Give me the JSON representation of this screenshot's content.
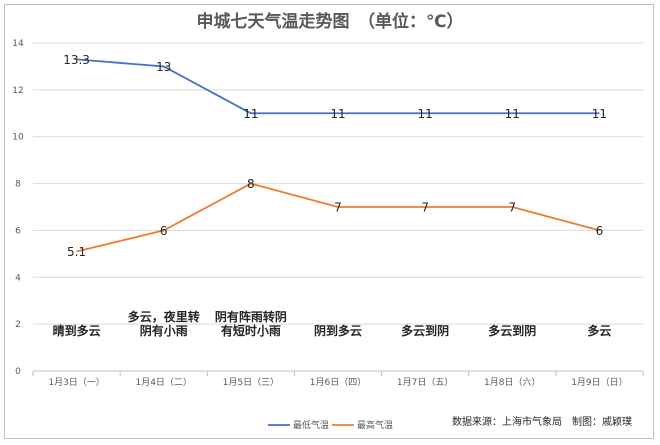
{
  "chart_data": {
    "type": "line",
    "title": "申城七天气温走势图　（单位：℃）",
    "categories": [
      "1月3日（一）",
      "1月4日（二）",
      "1月5日（三）",
      "1月6日（四）",
      "1月7日（五）",
      "1月8日（六）",
      "1月9日（日）"
    ],
    "ylim": [
      0,
      14
    ],
    "yticks": [
      0,
      2,
      4,
      6,
      8,
      10,
      12,
      14
    ],
    "grid": true,
    "legend_position": "bottom",
    "series": [
      {
        "name": "最低气温",
        "color": "#4472c4",
        "values": [
          13.3,
          13,
          11,
          11,
          11,
          11,
          11
        ],
        "labels": [
          "13.3",
          "13",
          "11",
          "11",
          "11",
          "11",
          "11"
        ]
      },
      {
        "name": "最高气温",
        "color": "#ed7d31",
        "values": [
          5.1,
          6,
          8,
          7,
          7,
          7,
          6
        ],
        "labels": [
          "5.1",
          "6",
          "8",
          "7",
          "7",
          "7",
          "6"
        ]
      }
    ],
    "weather": [
      [
        "晴到多云"
      ],
      [
        "多云，夜里转",
        "阴有小雨"
      ],
      [
        "阴有阵雨转阴",
        "有短时小雨"
      ],
      [
        "阴到多云"
      ],
      [
        "多云到阴"
      ],
      [
        "多云到阴"
      ],
      [
        "多云"
      ]
    ],
    "source": "数据来源：上海市气象局　制图：戚颖璞"
  }
}
